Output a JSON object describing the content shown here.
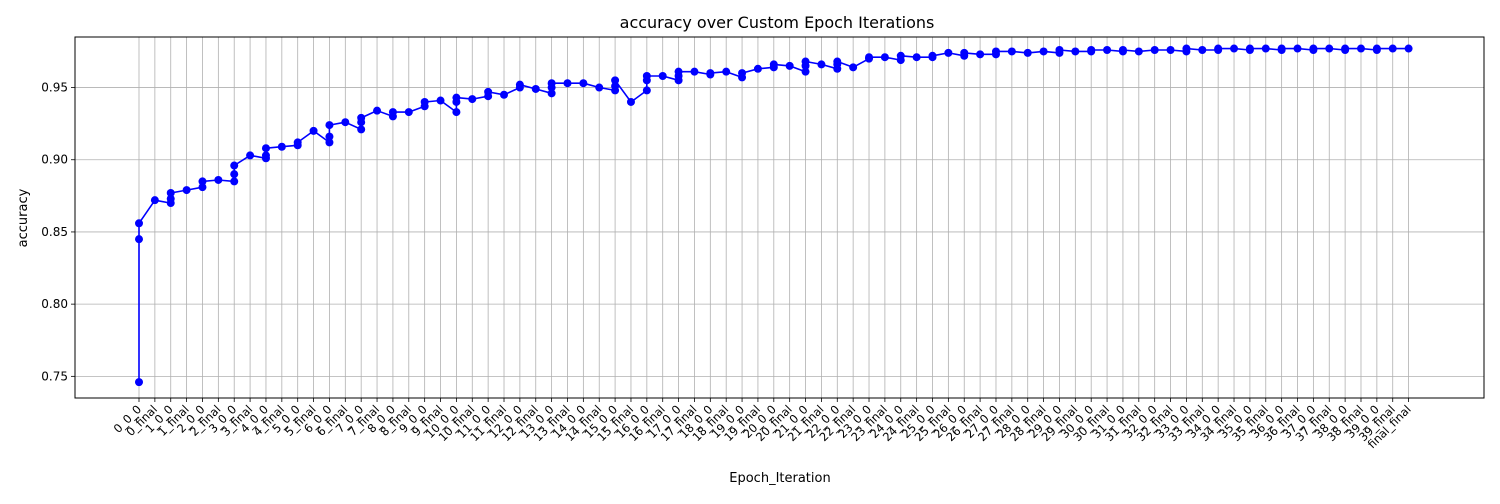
{
  "chart_data": {
    "type": "line",
    "title": "accuracy over Custom Epoch Iterations",
    "xlabel": "Epoch_Iteration",
    "ylabel": "accuracy",
    "ylim": [
      0.735,
      0.985
    ],
    "y_ticks": [
      0.75,
      0.8,
      0.85,
      0.9,
      0.95
    ],
    "grid": true,
    "line_color": "#0000ff",
    "marker": "circle",
    "categories": [
      "0_0_0",
      "0_final",
      "1_0_0",
      "1_final",
      "2_0_0",
      "2_final",
      "3_0_0",
      "3_final",
      "4_0_0",
      "4_final",
      "5_0_0",
      "5_final",
      "6_0_0",
      "6_final",
      "7_0_0",
      "7_final",
      "8_0_0",
      "8_final",
      "9_0_0",
      "9_final",
      "10_0_0",
      "10_final",
      "11_0_0",
      "11_final",
      "12_0_0",
      "12_final",
      "13_0_0",
      "13_final",
      "14_0_0",
      "14_final",
      "15_0_0",
      "15_final",
      "16_0_0",
      "16_final",
      "17_0_0",
      "17_final",
      "18_0_0",
      "18_final",
      "19_0_0",
      "19_final",
      "20_0_0",
      "20_final",
      "21_0_0",
      "21_final",
      "22_0_0",
      "22_final",
      "23_0_0",
      "23_final",
      "24_0_0",
      "24_final",
      "25_0_0",
      "25_final",
      "26_0_0",
      "26_final",
      "27_0_0",
      "27_final",
      "28_0_0",
      "28_final",
      "29_0_0",
      "29_final",
      "30_0_0",
      "30_final",
      "31_0_0",
      "31_final",
      "32_0_0",
      "32_final",
      "33_0_0",
      "33_final",
      "34_0_0",
      "34_final",
      "35_0_0",
      "35_final",
      "36_0_0",
      "36_final",
      "37_0_0",
      "37_final",
      "38_0_0",
      "38_final",
      "39_0_0",
      "39_final",
      "final_final"
    ],
    "points": [
      [
        "0_0_0",
        0.746
      ],
      [
        "0_0_0",
        0.845
      ],
      [
        "0_0_0",
        0.856
      ],
      [
        "0_final",
        0.872
      ],
      [
        "1_0_0",
        0.87
      ],
      [
        "1_0_0",
        0.873
      ],
      [
        "1_0_0",
        0.877
      ],
      [
        "1_final",
        0.879
      ],
      [
        "2_0_0",
        0.881
      ],
      [
        "2_0_0",
        0.885
      ],
      [
        "2_final",
        0.886
      ],
      [
        "3_0_0",
        0.885
      ],
      [
        "3_0_0",
        0.89
      ],
      [
        "3_0_0",
        0.896
      ],
      [
        "3_final",
        0.903
      ],
      [
        "4_0_0",
        0.901
      ],
      [
        "4_0_0",
        0.903
      ],
      [
        "4_0_0",
        0.908
      ],
      [
        "4_final",
        0.909
      ],
      [
        "5_0_0",
        0.91
      ],
      [
        "5_0_0",
        0.912
      ],
      [
        "5_final",
        0.92
      ],
      [
        "6_0_0",
        0.912
      ],
      [
        "6_0_0",
        0.916
      ],
      [
        "6_0_0",
        0.924
      ],
      [
        "6_final",
        0.926
      ],
      [
        "7_0_0",
        0.921
      ],
      [
        "7_0_0",
        0.926
      ],
      [
        "7_0_0",
        0.929
      ],
      [
        "7_final",
        0.934
      ],
      [
        "8_0_0",
        0.93
      ],
      [
        "8_0_0",
        0.933
      ],
      [
        "8_final",
        0.933
      ],
      [
        "9_0_0",
        0.937
      ],
      [
        "9_0_0",
        0.94
      ],
      [
        "9_final",
        0.941
      ],
      [
        "10_0_0",
        0.933
      ],
      [
        "10_0_0",
        0.94
      ],
      [
        "10_0_0",
        0.943
      ],
      [
        "10_final",
        0.942
      ],
      [
        "11_0_0",
        0.944
      ],
      [
        "11_0_0",
        0.947
      ],
      [
        "11_final",
        0.945
      ],
      [
        "12_0_0",
        0.95
      ],
      [
        "12_0_0",
        0.952
      ],
      [
        "12_final",
        0.949
      ],
      [
        "13_0_0",
        0.946
      ],
      [
        "13_0_0",
        0.95
      ],
      [
        "13_0_0",
        0.953
      ],
      [
        "13_final",
        0.953
      ],
      [
        "14_0_0",
        0.953
      ],
      [
        "14_final",
        0.95
      ],
      [
        "15_0_0",
        0.948
      ],
      [
        "15_0_0",
        0.951
      ],
      [
        "15_0_0",
        0.955
      ],
      [
        "15_final",
        0.94
      ],
      [
        "16_0_0",
        0.948
      ],
      [
        "16_0_0",
        0.955
      ],
      [
        "16_0_0",
        0.958
      ],
      [
        "16_final",
        0.958
      ],
      [
        "17_0_0",
        0.955
      ],
      [
        "17_0_0",
        0.958
      ],
      [
        "17_0_0",
        0.961
      ],
      [
        "17_final",
        0.961
      ],
      [
        "18_0_0",
        0.959
      ],
      [
        "18_0_0",
        0.96
      ],
      [
        "18_final",
        0.961
      ],
      [
        "19_0_0",
        0.957
      ],
      [
        "19_0_0",
        0.96
      ],
      [
        "19_final",
        0.963
      ],
      [
        "20_0_0",
        0.964
      ],
      [
        "20_0_0",
        0.966
      ],
      [
        "20_final",
        0.965
      ],
      [
        "21_0_0",
        0.961
      ],
      [
        "21_0_0",
        0.965
      ],
      [
        "21_0_0",
        0.968
      ],
      [
        "21_final",
        0.966
      ],
      [
        "22_0_0",
        0.963
      ],
      [
        "22_0_0",
        0.966
      ],
      [
        "22_0_0",
        0.968
      ],
      [
        "22_final",
        0.964
      ],
      [
        "23_0_0",
        0.97
      ],
      [
        "23_0_0",
        0.971
      ],
      [
        "23_final",
        0.971
      ],
      [
        "24_0_0",
        0.969
      ],
      [
        "24_0_0",
        0.972
      ],
      [
        "24_final",
        0.971
      ],
      [
        "25_0_0",
        0.971
      ],
      [
        "25_0_0",
        0.972
      ],
      [
        "25_final",
        0.974
      ],
      [
        "26_0_0",
        0.972
      ],
      [
        "26_0_0",
        0.974
      ],
      [
        "26_final",
        0.973
      ],
      [
        "27_0_0",
        0.973
      ],
      [
        "27_0_0",
        0.975
      ],
      [
        "27_final",
        0.975
      ],
      [
        "28_0_0",
        0.974
      ],
      [
        "28_final",
        0.975
      ],
      [
        "29_0_0",
        0.974
      ],
      [
        "29_0_0",
        0.976
      ],
      [
        "29_final",
        0.975
      ],
      [
        "30_0_0",
        0.975
      ],
      [
        "30_0_0",
        0.976
      ],
      [
        "30_final",
        0.976
      ],
      [
        "31_0_0",
        0.975
      ],
      [
        "31_0_0",
        0.976
      ],
      [
        "31_final",
        0.975
      ],
      [
        "32_0_0",
        0.976
      ],
      [
        "32_final",
        0.976
      ],
      [
        "33_0_0",
        0.975
      ],
      [
        "33_0_0",
        0.977
      ],
      [
        "33_final",
        0.976
      ],
      [
        "34_0_0",
        0.976
      ],
      [
        "34_0_0",
        0.977
      ],
      [
        "34_final",
        0.977
      ],
      [
        "35_0_0",
        0.976
      ],
      [
        "35_0_0",
        0.977
      ],
      [
        "35_final",
        0.977
      ],
      [
        "36_0_0",
        0.976
      ],
      [
        "36_0_0",
        0.977
      ],
      [
        "36_final",
        0.977
      ],
      [
        "37_0_0",
        0.976
      ],
      [
        "37_0_0",
        0.977
      ],
      [
        "37_final",
        0.977
      ],
      [
        "38_0_0",
        0.976
      ],
      [
        "38_0_0",
        0.977
      ],
      [
        "38_final",
        0.977
      ],
      [
        "39_0_0",
        0.976
      ],
      [
        "39_0_0",
        0.977
      ],
      [
        "39_final",
        0.977
      ],
      [
        "final_final",
        0.977
      ]
    ]
  }
}
